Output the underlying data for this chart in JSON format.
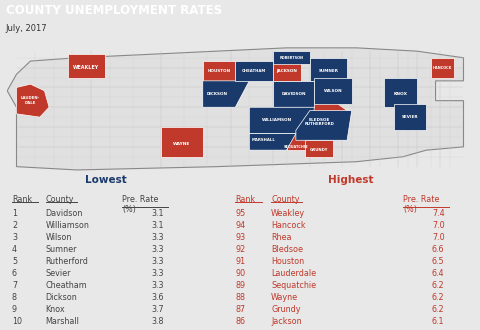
{
  "title": "COUNTY UNEMPLOYMENT RATES",
  "subtitle": "July, 2017",
  "title_bg": "#c0392b",
  "title_color": "#ffffff",
  "subtitle_color": "#333333",
  "bg_color": "#e8e8e8",
  "lowest_label": "Lowest",
  "highest_label": "Highest",
  "lowest_color": "#1a3a6b",
  "highest_color": "#c0392b",
  "low_ranks": [
    1,
    2,
    3,
    4,
    5,
    6,
    7,
    8,
    9,
    10
  ],
  "low_counties": [
    "Davidson",
    "Williamson",
    "Wilson",
    "Sumner",
    "Rutherford",
    "Sevier",
    "Cheatham",
    "Dickson",
    "Knox",
    "Marshall"
  ],
  "low_rates": [
    "3.1",
    "3.1",
    "3.3",
    "3.3",
    "3.3",
    "3.3",
    "3.3",
    "3.6",
    "3.7",
    "3.8"
  ],
  "high_ranks": [
    95,
    94,
    93,
    92,
    91,
    90,
    89,
    88,
    87,
    86
  ],
  "high_counties": [
    "Weakley",
    "Hancock",
    "Rhea",
    "Bledsoe",
    "Houston",
    "Lauderdale",
    "Sequatchie",
    "Wayne",
    "Grundy",
    "Jackson"
  ],
  "high_rates": [
    "7.4",
    "7.0",
    "7.0",
    "6.6",
    "6.5",
    "6.4",
    "6.2",
    "6.2",
    "6.2",
    "6.1"
  ],
  "red_color": "#c0392b",
  "blue_color": "#1a3a6b",
  "map_outline": "#aaaaaa",
  "county_line": "#aaaaaa",
  "map_fill": "#e0e0e0",
  "table_text_color": "#444444"
}
